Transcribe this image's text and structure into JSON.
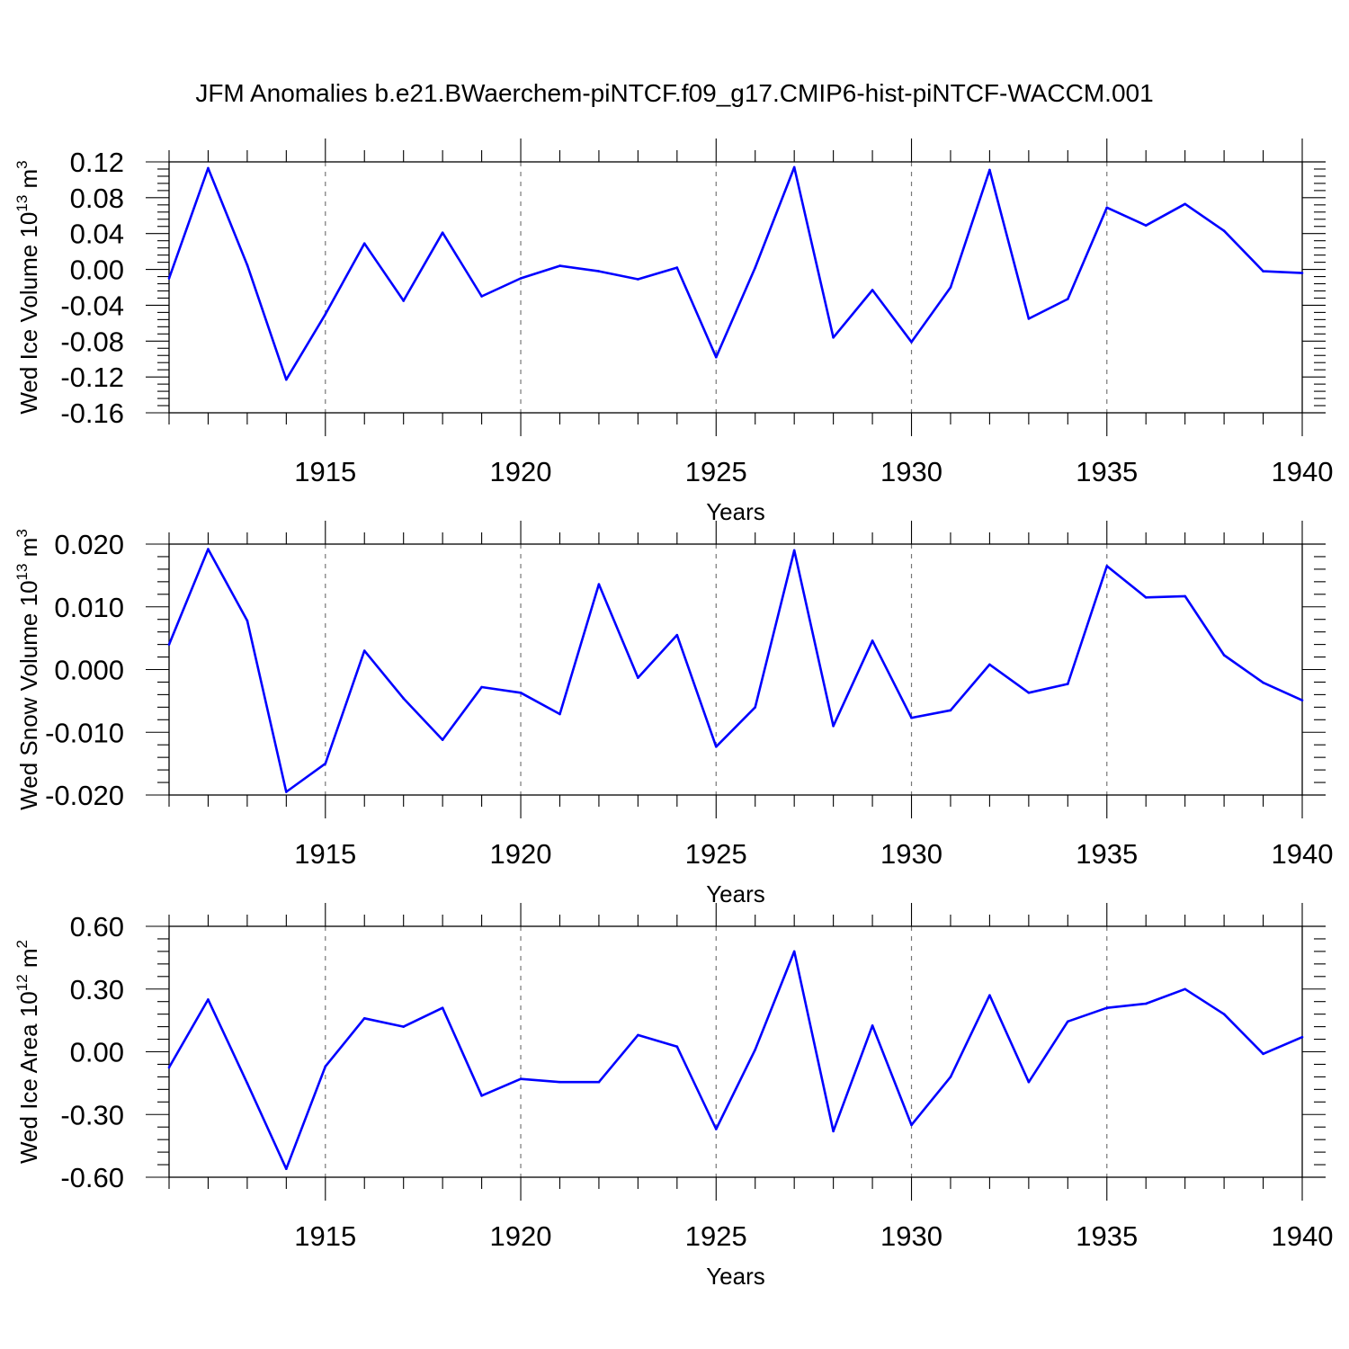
{
  "title": "JFM Anomalies b.e21.BWaerchem-piNTCF.f09_g17.CMIP6-hist-piNTCF-WACCM.001",
  "colors": {
    "series": "#0000ff",
    "axis": "#000000",
    "grid": "#777777"
  },
  "chart_data": [
    {
      "type": "line",
      "ylabel": {
        "main": "Wed Ice Volume 10",
        "sup": "13",
        "unit": " m",
        "unit_sup": "3"
      },
      "xlabel": "Years",
      "xlim": [
        1911,
        1940
      ],
      "ylim": [
        -0.16,
        0.12
      ],
      "yticks": [
        0.12,
        0.08,
        0.04,
        0.0,
        -0.04,
        -0.08,
        -0.12,
        -0.16
      ],
      "ytick_labels": [
        "0.12",
        "0.08",
        "0.04",
        "0.00",
        "-0.04",
        "-0.08",
        "-0.12",
        "-0.16"
      ],
      "xticks": [
        1915,
        1920,
        1925,
        1930,
        1935,
        1940
      ],
      "xtick_labels": [
        "1915",
        "1920",
        "1925",
        "1930",
        "1935",
        "1940"
      ],
      "grid": "vertical dashed at major x ticks",
      "x": [
        1911,
        1912,
        1913,
        1914,
        1915,
        1916,
        1917,
        1918,
        1919,
        1920,
        1921,
        1922,
        1923,
        1924,
        1925,
        1926,
        1927,
        1928,
        1929,
        1930,
        1931,
        1932,
        1933,
        1934,
        1935,
        1936,
        1937,
        1938,
        1939,
        1940
      ],
      "values": [
        -0.01,
        0.113,
        0.005,
        -0.123,
        -0.05,
        0.029,
        -0.035,
        0.041,
        -0.03,
        -0.01,
        0.004,
        -0.002,
        -0.011,
        0.002,
        -0.098,
        0.002,
        0.114,
        -0.076,
        -0.023,
        -0.081,
        -0.02,
        0.111,
        -0.055,
        -0.033,
        0.069,
        0.049,
        0.073,
        0.043,
        -0.002,
        -0.004
      ]
    },
    {
      "type": "line",
      "ylabel": {
        "main": "Wed Snow Volume 10",
        "sup": "13",
        "unit": " m",
        "unit_sup": "3"
      },
      "xlabel": "Years",
      "xlim": [
        1911,
        1940
      ],
      "ylim": [
        -0.02,
        0.02
      ],
      "yticks": [
        0.02,
        0.01,
        0.0,
        -0.01,
        -0.02
      ],
      "ytick_labels": [
        "0.020",
        "0.010",
        "0.000",
        "-0.010",
        "-0.020"
      ],
      "xticks": [
        1915,
        1920,
        1925,
        1930,
        1935,
        1940
      ],
      "xtick_labels": [
        "1915",
        "1920",
        "1925",
        "1930",
        "1935",
        "1940"
      ],
      "grid": "vertical dashed at major x ticks",
      "x": [
        1911,
        1912,
        1913,
        1914,
        1915,
        1916,
        1917,
        1918,
        1919,
        1920,
        1921,
        1922,
        1923,
        1924,
        1925,
        1926,
        1927,
        1928,
        1929,
        1930,
        1931,
        1932,
        1933,
        1934,
        1935,
        1936,
        1937,
        1938,
        1939,
        1940
      ],
      "values": [
        0.004,
        0.0192,
        0.0078,
        -0.0195,
        -0.015,
        0.003,
        -0.0046,
        -0.0112,
        -0.0028,
        -0.0037,
        -0.0071,
        0.0136,
        -0.0013,
        0.0055,
        -0.0123,
        -0.006,
        0.019,
        -0.009,
        0.0046,
        -0.0077,
        -0.0065,
        0.0008,
        -0.0037,
        -0.0023,
        0.0165,
        0.0115,
        0.0117,
        0.0023,
        -0.0021,
        -0.0049
      ]
    },
    {
      "type": "line",
      "ylabel": {
        "main": "Wed Ice Area 10",
        "sup": "12",
        "unit": " m",
        "unit_sup": "2"
      },
      "xlabel": "Years",
      "xlim": [
        1911,
        1940
      ],
      "ylim": [
        -0.6,
        0.6
      ],
      "yticks": [
        0.6,
        0.3,
        0.0,
        -0.3,
        -0.6
      ],
      "ytick_labels": [
        "0.60",
        "0.30",
        "0.00",
        "-0.30",
        "-0.60"
      ],
      "xticks": [
        1915,
        1920,
        1925,
        1930,
        1935,
        1940
      ],
      "xtick_labels": [
        "1915",
        "1920",
        "1925",
        "1930",
        "1935",
        "1940"
      ],
      "grid": "vertical dashed at major x ticks",
      "x": [
        1911,
        1912,
        1913,
        1914,
        1915,
        1916,
        1917,
        1918,
        1919,
        1920,
        1921,
        1922,
        1923,
        1924,
        1925,
        1926,
        1927,
        1928,
        1929,
        1930,
        1931,
        1932,
        1933,
        1934,
        1935,
        1936,
        1937,
        1938,
        1939,
        1940
      ],
      "values": [
        -0.075,
        0.25,
        -0.15,
        -0.56,
        -0.07,
        0.16,
        0.12,
        0.21,
        -0.21,
        -0.13,
        -0.145,
        -0.145,
        0.08,
        0.025,
        -0.37,
        0.01,
        0.48,
        -0.38,
        0.125,
        -0.35,
        -0.12,
        0.27,
        -0.145,
        0.145,
        0.21,
        0.23,
        0.3,
        0.18,
        -0.01,
        0.07
      ]
    }
  ]
}
